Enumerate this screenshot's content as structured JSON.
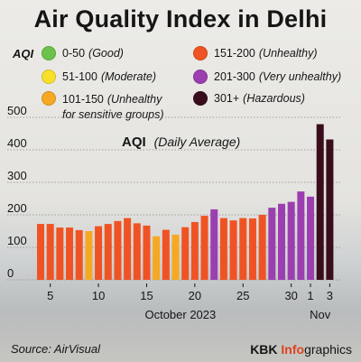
{
  "title": "Air Quality Index in Delhi",
  "legend": {
    "label": "AQI",
    "items": [
      {
        "range": "0-50",
        "desc": "(Good)",
        "color": "#6cc24a"
      },
      {
        "range": "51-100",
        "desc": "(Moderate)",
        "color": "#f7df2a"
      },
      {
        "range": "101-150",
        "desc": "(Unhealthy",
        "desc2": "for sensitive groups)",
        "color": "#f6a823"
      },
      {
        "range": "151-200",
        "desc": "(Unhealthy)",
        "color": "#f05323"
      },
      {
        "range": "201-300",
        "desc": "(Very unhealthy)",
        "color": "#9b3fb0"
      },
      {
        "range": "301+",
        "desc": "(Hazardous)",
        "color": "#3a0d1d"
      }
    ]
  },
  "chart_data": {
    "type": "bar",
    "title": "AQI",
    "subtitle": "(Daily Average)",
    "ylim": [
      0,
      500
    ],
    "yticks": [
      0,
      100,
      200,
      300,
      400,
      500
    ],
    "grid": true,
    "x_ticks": [
      {
        "day": 5,
        "label": "5"
      },
      {
        "day": 10,
        "label": "10"
      },
      {
        "day": 15,
        "label": "15"
      },
      {
        "day": 20,
        "label": "20"
      },
      {
        "day": 25,
        "label": "25"
      },
      {
        "day": 30,
        "label": "30"
      },
      {
        "day": 32,
        "label": "1"
      },
      {
        "day": 34,
        "label": "3"
      }
    ],
    "x_groups": [
      {
        "label": "October 2023",
        "center_day": 18.5
      },
      {
        "label": "Nov",
        "center_day": 33
      }
    ],
    "categories": [
      "Oct 4",
      "Oct 5",
      "Oct 6",
      "Oct 7",
      "Oct 8",
      "Oct 9",
      "Oct 10",
      "Oct 11",
      "Oct 12",
      "Oct 13",
      "Oct 14",
      "Oct 15",
      "Oct 16",
      "Oct 17",
      "Oct 18",
      "Oct 19",
      "Oct 20",
      "Oct 21",
      "Oct 22",
      "Oct 23",
      "Oct 24",
      "Oct 25",
      "Oct 26",
      "Oct 27",
      "Oct 28",
      "Oct 29",
      "Oct 30",
      "Oct 31",
      "Nov 1",
      "Nov 2",
      "Nov 3"
    ],
    "values": [
      172,
      172,
      161,
      161,
      153,
      150,
      165,
      172,
      181,
      190,
      174,
      167,
      134,
      154,
      139,
      162,
      178,
      197,
      217,
      190,
      183,
      190,
      189,
      200,
      222,
      234,
      240,
      272,
      256,
      479,
      432
    ],
    "colors": [
      "#f05323",
      "#f05323",
      "#f05323",
      "#f05323",
      "#f05323",
      "#f6a823",
      "#f05323",
      "#f05323",
      "#f05323",
      "#f05323",
      "#f05323",
      "#f05323",
      "#f6a823",
      "#f05323",
      "#f6a823",
      "#f05323",
      "#f05323",
      "#f05323",
      "#9b3fb0",
      "#f05323",
      "#f05323",
      "#f05323",
      "#f05323",
      "#f05323",
      "#9b3fb0",
      "#9b3fb0",
      "#9b3fb0",
      "#9b3fb0",
      "#9b3fb0",
      "#3a0d1d",
      "#3a0d1d"
    ]
  },
  "footer": {
    "source": "Source: AirVisual",
    "brand_prefix": "KBK ",
    "brand_accent": "Info",
    "brand_suffix": "graphics"
  }
}
